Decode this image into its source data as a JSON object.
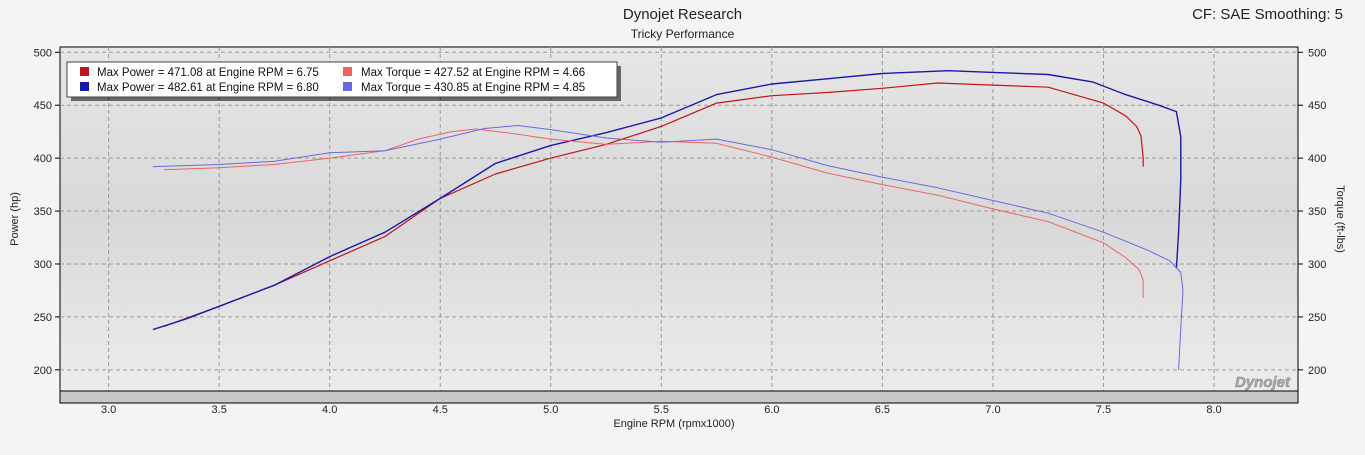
{
  "header": {
    "title": "Dynojet Research",
    "subtitle": "Tricky Performance",
    "cf_label": "CF: SAE Smoothing: 5"
  },
  "watermark": "Dynojet",
  "colors": {
    "power_red": "#c0161a",
    "power_blue": "#1a1aa8",
    "torque_red": "#ee6464",
    "torque_blue": "#6a6ae0"
  },
  "chart_data": {
    "type": "line",
    "title": "Dynojet Research",
    "subtitle": "Tricky Performance",
    "xlabel": "Engine RPM (rpmx1000)",
    "ylabel_left": "Power (hp)",
    "ylabel_right": "Torque (ft-lbs)",
    "xlim": [
      2.78,
      8.38
    ],
    "ylim_left": [
      180,
      505
    ],
    "ylim_right": [
      180,
      505
    ],
    "x_ticks": [
      "3.0",
      "3.5",
      "4.0",
      "4.5",
      "5.0",
      "5.5",
      "6.0",
      "6.5",
      "7.0",
      "7.5",
      "8.0"
    ],
    "y_ticks_left": [
      "200",
      "250",
      "300",
      "350",
      "400",
      "450",
      "500"
    ],
    "y_ticks_right": [
      "200",
      "250",
      "300",
      "350",
      "400",
      "450",
      "500"
    ],
    "grid": true,
    "legend": [
      {
        "text": "Max Power = 471.08 at Engine RPM = 6.75",
        "color": "#c0161a"
      },
      {
        "text": "Max Power = 482.61 at Engine RPM = 6.80",
        "color": "#1a1aa8"
      },
      {
        "text": "Max Torque = 427.52 at Engine RPM = 4.66",
        "color": "#ee6464"
      },
      {
        "text": "Max Torque = 430.85 at Engine RPM = 4.85",
        "color": "#6a6ae0"
      }
    ],
    "series": [
      {
        "axis": "left",
        "color": "#c0161a",
        "width": 1.2,
        "points": [
          [
            3.25,
            241
          ],
          [
            3.5,
            260
          ],
          [
            3.75,
            280
          ],
          [
            4.0,
            303
          ],
          [
            4.25,
            326
          ],
          [
            4.5,
            362
          ],
          [
            4.75,
            385
          ],
          [
            5.0,
            400
          ],
          [
            5.25,
            413
          ],
          [
            5.5,
            430
          ],
          [
            5.75,
            452
          ],
          [
            6.0,
            459
          ],
          [
            6.25,
            462
          ],
          [
            6.5,
            466
          ],
          [
            6.75,
            471
          ],
          [
            7.0,
            469
          ],
          [
            7.25,
            467
          ],
          [
            7.5,
            452
          ],
          [
            7.6,
            440
          ],
          [
            7.65,
            430
          ],
          [
            7.67,
            421
          ],
          [
            7.68,
            400
          ],
          [
            7.68,
            392
          ]
        ]
      },
      {
        "axis": "left",
        "color": "#1a1aa8",
        "width": 1.4,
        "points": [
          [
            3.2,
            238
          ],
          [
            3.35,
            248
          ],
          [
            3.5,
            260
          ],
          [
            3.75,
            280
          ],
          [
            4.0,
            307
          ],
          [
            4.25,
            330
          ],
          [
            4.5,
            362
          ],
          [
            4.75,
            395
          ],
          [
            5.0,
            412
          ],
          [
            5.25,
            424
          ],
          [
            5.5,
            438
          ],
          [
            5.75,
            460
          ],
          [
            6.0,
            470
          ],
          [
            6.25,
            475
          ],
          [
            6.5,
            480
          ],
          [
            6.8,
            482.6
          ],
          [
            7.0,
            481
          ],
          [
            7.25,
            479
          ],
          [
            7.45,
            472
          ],
          [
            7.6,
            460
          ],
          [
            7.75,
            450
          ],
          [
            7.83,
            444
          ],
          [
            7.85,
            420
          ],
          [
            7.85,
            380
          ],
          [
            7.84,
            330
          ],
          [
            7.83,
            296
          ]
        ]
      },
      {
        "axis": "right",
        "color": "#ee6464",
        "width": 1,
        "points": [
          [
            3.25,
            389
          ],
          [
            3.5,
            391
          ],
          [
            3.75,
            394
          ],
          [
            4.0,
            400
          ],
          [
            4.25,
            407
          ],
          [
            4.4,
            418
          ],
          [
            4.55,
            425
          ],
          [
            4.66,
            427.5
          ],
          [
            4.8,
            424
          ],
          [
            5.0,
            418
          ],
          [
            5.25,
            413
          ],
          [
            5.5,
            416
          ],
          [
            5.75,
            414
          ],
          [
            6.0,
            401
          ],
          [
            6.25,
            386
          ],
          [
            6.5,
            375
          ],
          [
            6.75,
            365
          ],
          [
            7.0,
            352
          ],
          [
            7.25,
            340
          ],
          [
            7.5,
            320
          ],
          [
            7.6,
            306
          ],
          [
            7.66,
            295
          ],
          [
            7.68,
            285
          ],
          [
            7.68,
            268
          ]
        ]
      },
      {
        "axis": "right",
        "color": "#6a6ae0",
        "width": 1,
        "points": [
          [
            3.2,
            392
          ],
          [
            3.5,
            394
          ],
          [
            3.75,
            397
          ],
          [
            4.0,
            405
          ],
          [
            4.25,
            407
          ],
          [
            4.5,
            418
          ],
          [
            4.7,
            428
          ],
          [
            4.85,
            430.8
          ],
          [
            5.0,
            427
          ],
          [
            5.25,
            419
          ],
          [
            5.5,
            415
          ],
          [
            5.75,
            418
          ],
          [
            6.0,
            408
          ],
          [
            6.25,
            393
          ],
          [
            6.5,
            382
          ],
          [
            6.75,
            372
          ],
          [
            7.0,
            360
          ],
          [
            7.25,
            348
          ],
          [
            7.5,
            330
          ],
          [
            7.7,
            313
          ],
          [
            7.8,
            303
          ],
          [
            7.85,
            292
          ],
          [
            7.86,
            275
          ],
          [
            7.85,
            240
          ],
          [
            7.84,
            200
          ]
        ]
      }
    ]
  }
}
